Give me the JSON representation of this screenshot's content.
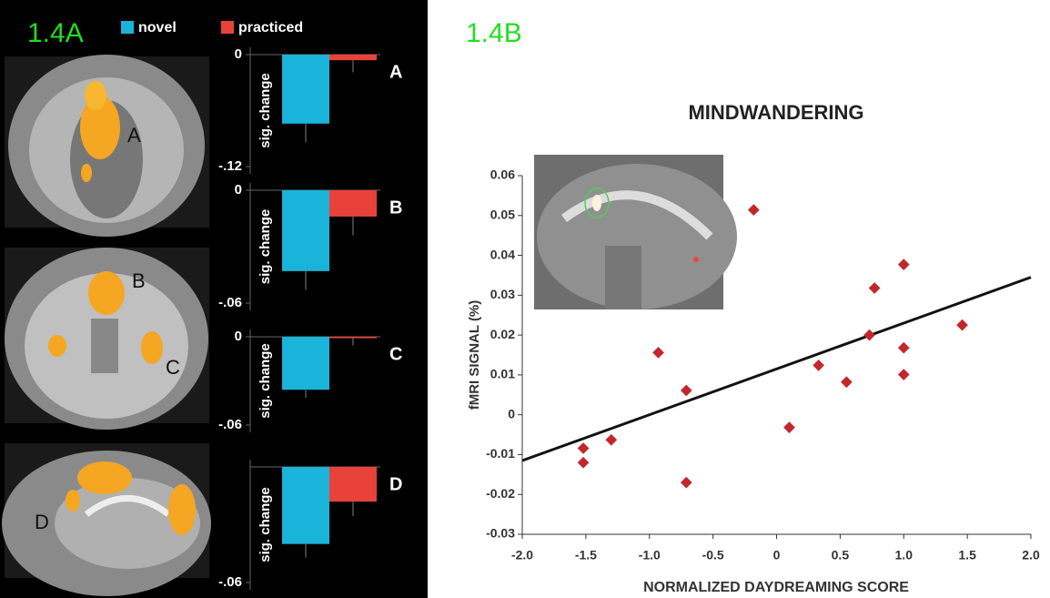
{
  "chart_data": [
    {
      "type": "bar-panels",
      "figure_label": "1.4A",
      "series": [
        {
          "name": "novel",
          "color": "#1ab3d9"
        },
        {
          "name": "practiced",
          "color": "#e8423a"
        }
      ],
      "panels": [
        {
          "label": "A",
          "y_label": "sig. change",
          "ylim": [
            -0.12,
            0
          ],
          "yticks": [
            0,
            {
              "value": -0.12,
              "label": "-.12"
            }
          ],
          "values": [
            -0.074,
            -0.006
          ],
          "errors": [
            0.02,
            0.013
          ]
        },
        {
          "label": "B",
          "y_label": "sig. change",
          "ylim": [
            -0.06,
            0
          ],
          "yticks": [
            0,
            {
              "value": -0.06,
              "label": "-.06"
            }
          ],
          "values": [
            -0.043,
            -0.014
          ],
          "errors": [
            0.01,
            0.01
          ]
        },
        {
          "label": "C",
          "y_label": "sig. change",
          "ylim": [
            -0.06,
            0
          ],
          "yticks": [
            0,
            {
              "value": -0.06,
              "label": "-.06"
            }
          ],
          "values": [
            -0.036,
            -0.001
          ],
          "errors": [
            0.0055,
            0.005
          ]
        },
        {
          "label": "D",
          "y_label": "sig. change",
          "ylim": [
            -0.06,
            0
          ],
          "yticks": [
            {
              "value": -0.06,
              "label": "-.06"
            }
          ],
          "values": [
            -0.04,
            -0.018
          ],
          "errors": [
            0.007,
            0.0075
          ]
        }
      ]
    },
    {
      "type": "scatter",
      "figure_label": "1.4B",
      "title": "MINDWANDERING",
      "x_label": "NORMALIZED DAYDREAMING SCORE",
      "y_label": "fMRI SIGNAL (%)",
      "color": "#c0282d",
      "x": [
        -1.52,
        -1.52,
        -1.3,
        -0.93,
        -0.71,
        -0.71,
        -0.18,
        0.1,
        0.33,
        0.55,
        0.73,
        0.77,
        1.0,
        1.0,
        1.0,
        1.46
      ],
      "values": [
        -0.0084,
        -0.012,
        -0.0063,
        0.0156,
        0.0061,
        -0.017,
        0.0514,
        -0.0032,
        0.0124,
        0.0082,
        0.02,
        0.0318,
        0.0377,
        0.0168,
        0.0101,
        0.0225
      ],
      "trend_line": {
        "x": [
          -2,
          2
        ],
        "y": [
          -0.0115,
          0.0345
        ]
      },
      "xlim": [
        -2,
        2
      ],
      "xticks": [
        {
          "value": -2,
          "label": "-2.0"
        },
        -1.5,
        {
          "value": -1,
          "label": "-1.0"
        },
        -0.5,
        0,
        0.5,
        {
          "value": 1,
          "label": "1.0"
        },
        1.5,
        {
          "value": 2,
          "label": "2.0"
        }
      ],
      "ylim": [
        -0.03,
        0.06
      ],
      "yticks": [
        -0.03,
        -0.02,
        -0.01,
        0,
        0.01,
        0.02,
        0.03,
        0.04,
        0.05,
        0.06
      ]
    }
  ]
}
